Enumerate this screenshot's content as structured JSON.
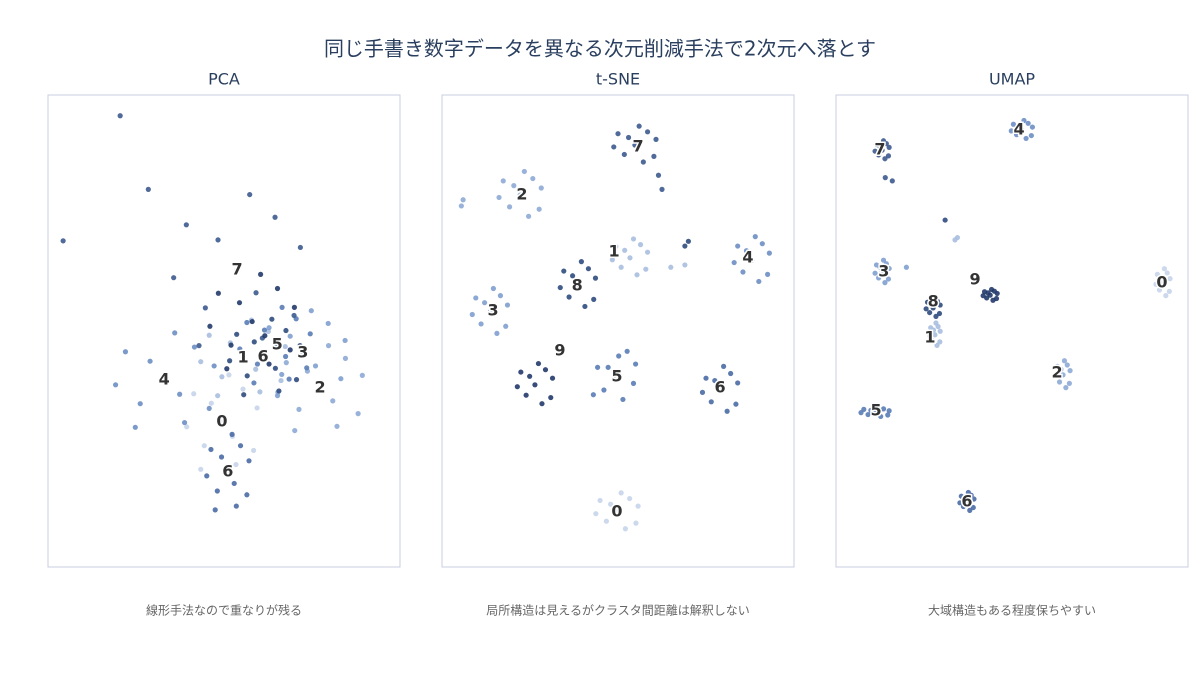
{
  "title": "同じ手書き数字データを異なる次元削減手法で2次元へ落とす",
  "chart_data": [
    {
      "type": "scatter",
      "title": "PCA",
      "caption": "線形手法なので重なりが残る",
      "xlim": [
        0,
        100
      ],
      "ylim": [
        0,
        100
      ],
      "series": [
        {
          "color": "#c6d4ea",
          "x": [
            49.4,
            59.4,
            41.4,
            53.4,
            44.4,
            58.4,
            39.4,
            51.4,
            55.4,
            46.4,
            52.4,
            43.4
          ],
          "y": [
            30.7,
            33.7,
            36.7,
            21.7,
            25.7,
            24.7,
            29.7,
            40.7,
            37.7,
            34.7,
            27.7,
            20.7
          ]
        },
        {
          "color": "#a9bfe0",
          "x": [
            55.4,
            67.4,
            45.8,
            60.2,
            49.4,
            66.2,
            43.4,
            57.8,
            62.6,
            51.8,
            59,
            48.2
          ],
          "y": [
            44.3,
            46.7,
            49.1,
            37.1,
            40.3,
            39.5,
            43.5,
            52.3,
            49.9,
            47.5,
            41.9,
            36.3
          ]
        },
        {
          "color": "#8eaad6",
          "x": [
            77.3,
            89.3,
            67.7,
            82.1,
            71.3,
            88.1,
            65.3,
            79.7,
            84.5,
            73.7,
            80.9,
            70.1
          ],
          "y": [
            37.9,
            40.6,
            43.3,
            29.8,
            33.4,
            32.5,
            37,
            46.9,
            44.2,
            41.5,
            35.2,
            28.9
          ]
        },
        {
          "color": "#7f9fcf",
          "x": [
            72.4,
            84.4,
            62.8,
            77.2,
            66.4,
            83.2,
            60.4,
            74.8,
            79.6,
            68.8,
            76,
            65.2
          ],
          "y": [
            45.3,
            48,
            50.7,
            37.2,
            40.8,
            39.9,
            44.4,
            54.3,
            51.6,
            48.9,
            42.6,
            36.3
          ]
        },
        {
          "color": "#6d8fc4",
          "x": [
            33.2,
            47.2,
            22,
            38.8,
            26.2,
            45.8,
            19.2,
            36,
            41.6,
            29,
            37.4,
            24.8
          ],
          "y": [
            39.6,
            42.6,
            45.6,
            30.6,
            34.6,
            33.6,
            38.6,
            49.6,
            46.6,
            43.6,
            36.6,
            29.6
          ]
        },
        {
          "color": "#5a7db6",
          "x": [
            64.5,
            74.5,
            56.5,
            68.5,
            59.5,
            73.5,
            54.5,
            66.5,
            70.5,
            61.5,
            67.5,
            58.5
          ],
          "y": [
            47,
            49.4,
            51.8,
            39.8,
            43,
            42.2,
            46.2,
            55,
            52.6,
            50.2,
            44.6,
            39
          ]
        },
        {
          "color": "#4b6ca6",
          "x": [
            51.1,
            57.1,
            46.3,
            53.5,
            48.1,
            56.5,
            45.1,
            52.3,
            54.7,
            49.3,
            52.9,
            47.5
          ],
          "y": [
            20.1,
            22.5,
            24.9,
            12.9,
            16.1,
            15.3,
            19.3,
            28.1,
            25.7,
            23.3,
            17.7,
            12.1
          ]
        },
        {
          "color": "#3d5a8f",
          "x": [
            53.7,
            71.7,
            39.3,
            60.9,
            44.7,
            69.9,
            35.7,
            57.3,
            64.5,
            48.3,
            59.1,
            42.9,
            20.5,
            4.3,
            28.5
          ],
          "y": [
            62.9,
            67.7,
            72.5,
            48.5,
            54.9,
            53.3,
            61.3,
            78.9,
            74.1,
            69.3,
            58.1,
            46.9,
            95.6,
            69.1,
            80
          ]
        },
        {
          "color": "#304c80",
          "x": [
            61.6,
            71.6,
            53.6,
            65.6,
            56.6,
            70.6,
            51.6,
            63.6,
            67.6,
            58.6,
            64.6,
            55.6
          ],
          "y": [
            44.5,
            46.9,
            49.3,
            37.3,
            40.5,
            39.7,
            43.7,
            52.5,
            50.1,
            47.7,
            42.1,
            36.5
          ]
        },
        {
          "color": "#223a6a",
          "x": [
            58,
            70,
            48.4,
            62.8,
            52,
            68.8,
            46,
            60.4,
            65.2,
            54.4,
            61.6,
            50.8
          ],
          "y": [
            52,
            55,
            58,
            43,
            47,
            46,
            51,
            62,
            59,
            56,
            49,
            42
          ]
        }
      ],
      "annotations": [
        {
          "text": "7",
          "x": 53.7,
          "y": 62.9
        },
        {
          "text": "1",
          "x": 55.4,
          "y": 44.3
        },
        {
          "text": "6",
          "x": 61.1,
          "y": 44.5
        },
        {
          "text": "5",
          "x": 65.1,
          "y": 47
        },
        {
          "text": "3",
          "x": 72.4,
          "y": 45.3
        },
        {
          "text": "4",
          "x": 33,
          "y": 39.6
        },
        {
          "text": "2",
          "x": 77.3,
          "y": 37.9
        },
        {
          "text": "0",
          "x": 49.4,
          "y": 30.7
        },
        {
          "text": "6",
          "x": 51.1,
          "y": 20.1
        }
      ]
    },
    {
      "type": "scatter",
      "title": "t-SNE",
      "caption": "局所構造は見えるがクラスタ間距離は解釈しない",
      "xlim": [
        0,
        100
      ],
      "ylim": [
        0,
        100
      ],
      "series": [
        {
          "color": "#c6d4ea",
          "x": [
            49.7,
            55.7,
            44.9,
            52.1,
            46.7,
            55.1,
            43.7,
            50.9,
            53.3,
            47.9
          ],
          "y": [
            11.7,
            12.9,
            14.1,
            8.1,
            9.7,
            9.3,
            11.3,
            15.7,
            14.5,
            13.3
          ]
        },
        {
          "color": "#a9bfe0",
          "x": [
            53.4,
            58.4,
            49.4,
            55.4,
            50.9,
            57.9,
            48.4,
            54.4,
            56.4,
            51.9,
            65,
            69
          ],
          "y": [
            65.5,
            66.7,
            67.9,
            61.9,
            63.5,
            63.1,
            65.1,
            69.5,
            68.3,
            67.1,
            63.5,
            64
          ]
        },
        {
          "color": "#8eaad6",
          "x": [
            22.2,
            28.2,
            17.4,
            24.6,
            19.2,
            27.6,
            16.2,
            23.4,
            25.8,
            20.4,
            6,
            5.5
          ],
          "y": [
            78.8,
            80.3,
            81.8,
            74.3,
            76.3,
            75.8,
            78.3,
            83.8,
            82.3,
            80.8,
            77.8,
            76.5
          ]
        },
        {
          "color": "#7f9fcf",
          "x": [
            13.6,
            18.6,
            9.6,
            15.6,
            11.1,
            18.1,
            8.6,
            14.6,
            16.6,
            12.1
          ],
          "y": [
            54,
            55.5,
            57,
            49.5,
            51.5,
            51,
            53.5,
            59,
            57.5,
            56
          ]
        },
        {
          "color": "#6d8fc4",
          "x": [
            88,
            93,
            84,
            90,
            85.5,
            92.5,
            83,
            89,
            91,
            86.5
          ],
          "y": [
            65,
            66.5,
            68,
            60.5,
            62.5,
            62,
            64.5,
            70,
            68.5,
            67
          ]
        },
        {
          "color": "#5a7db6",
          "x": [
            49,
            55,
            44.2,
            51.4,
            46,
            54.4,
            43,
            50.2,
            52.6,
            47.2
          ],
          "y": [
            40.7,
            43,
            42.3,
            35.5,
            37.5,
            38.9,
            36.5,
            44.7,
            45.7,
            42.3
          ]
        },
        {
          "color": "#4b6ca6",
          "x": [
            79,
            84,
            75,
            81,
            76.5,
            83.5,
            74,
            80,
            82,
            77.5
          ],
          "y": [
            37.5,
            39,
            40,
            33,
            35,
            34.5,
            37,
            42.5,
            41,
            39.5
          ]
        },
        {
          "color": "#3d5a8f",
          "x": [
            54.8,
            60.8,
            50,
            57.2,
            51.8,
            60.2,
            48.8,
            56,
            58.4,
            53,
            62.5,
            61.5
          ],
          "y": [
            89.4,
            90.6,
            91.8,
            85.8,
            87.4,
            87,
            89,
            93.4,
            92.2,
            91,
            80,
            83
          ]
        },
        {
          "color": "#304c80",
          "x": [
            38.6,
            43.6,
            34.6,
            40.6,
            36.1,
            43.1,
            33.6,
            39.6,
            41.6,
            37.1,
            70,
            69
          ],
          "y": [
            59.7,
            61.2,
            62.7,
            55.2,
            57.2,
            56.7,
            59.2,
            64.7,
            63.2,
            61.7,
            69,
            68
          ]
        },
        {
          "color": "#223a6a",
          "x": [
            26.4,
            31.4,
            22.4,
            28.4,
            23.9,
            30.9,
            21.4,
            27.4,
            29.4,
            24.9
          ],
          "y": [
            38.6,
            40,
            41.3,
            34.6,
            36.4,
            35.9,
            38.2,
            43.1,
            41.8,
            40.4
          ]
        }
      ],
      "annotations": [
        {
          "text": "0",
          "x": 49.7,
          "y": 11.7
        },
        {
          "text": "1",
          "x": 48.9,
          "y": 66.7
        },
        {
          "text": "2",
          "x": 22.7,
          "y": 78.8
        },
        {
          "text": "3",
          "x": 14.5,
          "y": 54.2
        },
        {
          "text": "4",
          "x": 86.9,
          "y": 65.5
        },
        {
          "text": "5",
          "x": 49.7,
          "y": 40.3
        },
        {
          "text": "6",
          "x": 79,
          "y": 37.9
        },
        {
          "text": "7",
          "x": 55.7,
          "y": 89
        },
        {
          "text": "8",
          "x": 38.4,
          "y": 59.5
        },
        {
          "text": "9",
          "x": 33.5,
          "y": 45.8
        }
      ]
    },
    {
      "type": "scatter",
      "title": "UMAP",
      "caption": "大域構造もある程度保ちやすい",
      "xlim": [
        0,
        100
      ],
      "ylim": [
        0,
        100
      ],
      "series": [
        {
          "color": "#c6d4ea",
          "x": [
            92.9,
            94.9,
            91.3,
            93.7,
            91.9,
            94.7,
            90.9,
            93.3,
            94.1,
            92.3
          ],
          "y": [
            60.2,
            61.1,
            62,
            57.5,
            58.7,
            58.4,
            59.9,
            63.2,
            62.3,
            61.4
          ]
        },
        {
          "color": "#a9bfe0",
          "x": [
            28.1,
            29.6,
            26.9,
            28.7,
            27.4,
            29.5,
            26.6,
            28.4,
            29,
            27.7,
            33.8,
            34.5
          ],
          "y": [
            49.2,
            49.95,
            50.7,
            46.95,
            47.95,
            47.7,
            48.95,
            51.7,
            50.95,
            50.2,
            69.3,
            69.8
          ]
        },
        {
          "color": "#8eaad6",
          "x": [
            64.5,
            66.5,
            62.9,
            65.3,
            63.5,
            66.3,
            62.5,
            64.9,
            65.7,
            63.9
          ],
          "y": [
            40.7,
            41.6,
            42.5,
            38,
            39.2,
            38.9,
            40.4,
            43.7,
            42.8,
            41.9
          ]
        },
        {
          "color": "#7f9fcf",
          "x": [
            13.1,
            15.1,
            11.5,
            13.9,
            12.1,
            14.9,
            11.1,
            13.5,
            14.3,
            12.5,
            20
          ],
          "y": [
            62.5,
            63.25,
            64,
            60.25,
            61.25,
            61,
            62.25,
            65,
            64.25,
            63.5,
            63.5
          ]
        },
        {
          "color": "#6d8fc4",
          "x": [
            52.8,
            55.8,
            50.4,
            54,
            51.3,
            55.5,
            49.8,
            53.4,
            54.6,
            51.9
          ],
          "y": [
            92.6,
            93.2,
            93.8,
            90.8,
            91.6,
            91.4,
            92.4,
            94.6,
            94,
            93.4
          ]
        },
        {
          "color": "#5a7db6",
          "x": [
            11.1,
            15.1,
            7.9,
            12.7,
            9.1,
            14.7,
            7.1,
            11.9,
            13.5,
            9.9
          ],
          "y": [
            32.8,
            33.1,
            33.4,
            31.9,
            32.3,
            32.2,
            32.7,
            33.8,
            33.5,
            33.2
          ]
        },
        {
          "color": "#4b6ca6",
          "x": [
            37.2,
            39.2,
            35.6,
            38,
            36.2,
            39,
            35.2,
            37.6,
            38.4,
            36.6
          ],
          "y": [
            13.8,
            14.4,
            15,
            12,
            12.8,
            12.6,
            13.6,
            15.8,
            15.2,
            14.6
          ]
        },
        {
          "color": "#3d5a8f",
          "x": [
            13.1,
            15.1,
            11.5,
            13.9,
            12.1,
            14.9,
            11.1,
            13.5,
            14.3,
            12.5,
            14,
            16
          ],
          "y": [
            88.3,
            88.9,
            89.5,
            86.5,
            87.3,
            87.1,
            88.1,
            90.3,
            89.7,
            89.1,
            82.5,
            81.8
          ]
        },
        {
          "color": "#304c80",
          "x": [
            27.6,
            29.6,
            26,
            28.4,
            26.6,
            29.4,
            25.6,
            28,
            28.8,
            27,
            31
          ],
          "y": [
            54.9,
            55.5,
            56.1,
            53.1,
            53.9,
            53.7,
            54.7,
            56.9,
            56.3,
            55.5,
            73.5
          ]
        },
        {
          "color": "#223a6a",
          "x": [
            43.8,
            45.8,
            42.2,
            44.6,
            42.8,
            45.6,
            41.8,
            44.2,
            45,
            43.2
          ],
          "y": [
            57.6,
            57.96,
            58.32,
            56.52,
            57,
            56.88,
            57.48,
            58.8,
            58.44,
            58.08
          ]
        }
      ],
      "annotations": [
        {
          "text": "0",
          "x": 92.6,
          "y": 60.2
        },
        {
          "text": "1",
          "x": 26.7,
          "y": 48.5
        },
        {
          "text": "2",
          "x": 62.8,
          "y": 41.1
        },
        {
          "text": "3",
          "x": 13.6,
          "y": 62.5
        },
        {
          "text": "4",
          "x": 52,
          "y": 92.6
        },
        {
          "text": "5",
          "x": 11.4,
          "y": 33.1
        },
        {
          "text": "6",
          "x": 37.2,
          "y": 13.8
        },
        {
          "text": "7",
          "x": 12.5,
          "y": 88.3
        },
        {
          "text": "8",
          "x": 27.6,
          "y": 56.1
        },
        {
          "text": "9",
          "x": 39.5,
          "y": 60.8
        }
      ]
    }
  ]
}
